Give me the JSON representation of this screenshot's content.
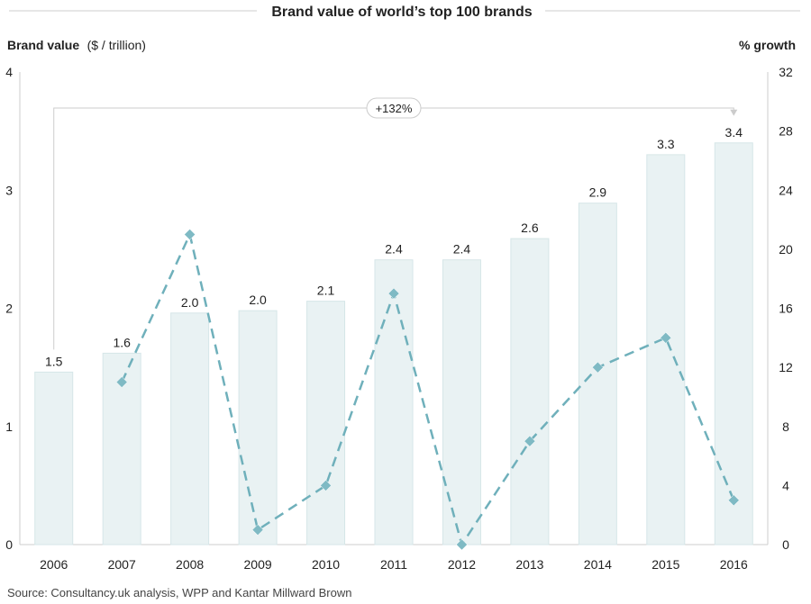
{
  "chart_data": {
    "type": "bar",
    "title": "Brand value of world’s top 100 brands",
    "ylabel": "Brand value",
    "ylabel_unit": "($ / trillion)",
    "y2label": "% growth",
    "categories": [
      "2006",
      "2007",
      "2008",
      "2009",
      "2010",
      "2011",
      "2012",
      "2013",
      "2014",
      "2015",
      "2016"
    ],
    "series": [
      {
        "name": "Brand value",
        "kind": "bar",
        "axis": "left",
        "values": [
          1.46,
          1.62,
          1.96,
          1.98,
          2.06,
          2.41,
          2.41,
          2.59,
          2.89,
          3.3,
          3.4
        ],
        "labels": [
          "1.5",
          "1.6",
          "2.0",
          "2.0",
          "2.1",
          "2.4",
          "2.4",
          "2.6",
          "2.9",
          "3.3",
          "3.4"
        ],
        "color": "#e9f2f3"
      },
      {
        "name": "% growth",
        "kind": "line",
        "axis": "right",
        "values": [
          null,
          11,
          21,
          1,
          4,
          17,
          0,
          7,
          12,
          14,
          3
        ],
        "color": "#6fb0bb",
        "style": "dashed"
      }
    ],
    "ylim": [
      0,
      4
    ],
    "yticks": [
      "0",
      "1",
      "2",
      "3",
      "4"
    ],
    "y2lim": [
      0,
      32
    ],
    "y2ticks": [
      "0",
      "4",
      "8",
      "12",
      "16",
      "20",
      "24",
      "28",
      "32"
    ],
    "annotation": {
      "text": "+132%",
      "from": "2006",
      "to": "2016"
    },
    "source": "Source: Consultancy.uk analysis, WPP and Kantar Millward Brown",
    "colors": {
      "bar": "#e9f2f3",
      "bar_stroke": "#d6e6e8",
      "line": "#6fb0bb",
      "marker": "#7fbac4",
      "axis": "#cccccc",
      "text": "#222222"
    }
  }
}
